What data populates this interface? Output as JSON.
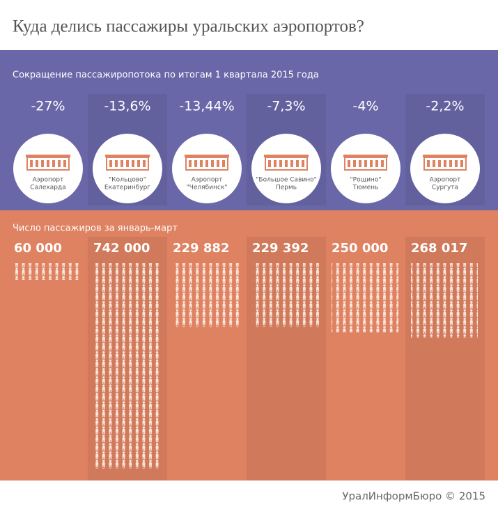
{
  "chart_data": {
    "type": "pictogram",
    "title": "Куда делись пассажиры уральских аэропортов?",
    "categories": [
      [
        "Аэропорт",
        "Салехарда"
      ],
      [
        "\"Кольцово\"",
        "Екатеринбург"
      ],
      [
        "Аэропорт",
        "\"Челябинск\""
      ],
      [
        "\"Большое Савино\"",
        "Пермь"
      ],
      [
        "\"Рощино\"",
        "Тюмень"
      ],
      [
        "Аэропорт",
        "Сургута"
      ]
    ],
    "series": [
      {
        "name": "Сокращение пассажиропотока по итогам 1 квартала 2015 года",
        "color": "#6a67a8",
        "values": [
          -27,
          -13.6,
          -13.44,
          -7.3,
          -4,
          -2.2
        ],
        "value_labels": [
          "-27%",
          "-13,6%",
          "-13,44%",
          "-7,3%",
          "-4%",
          "-2,2%"
        ]
      },
      {
        "name": "Число пассажиров за январь-март",
        "color": "#de8261",
        "values": [
          60000,
          742000,
          229882,
          229392,
          250000,
          268017
        ],
        "value_labels": [
          "60 000",
          "742 000",
          "229 882",
          "229 392",
          "250 000",
          "268 017"
        ]
      }
    ],
    "source": "УралИнформБюро © 2015"
  }
}
